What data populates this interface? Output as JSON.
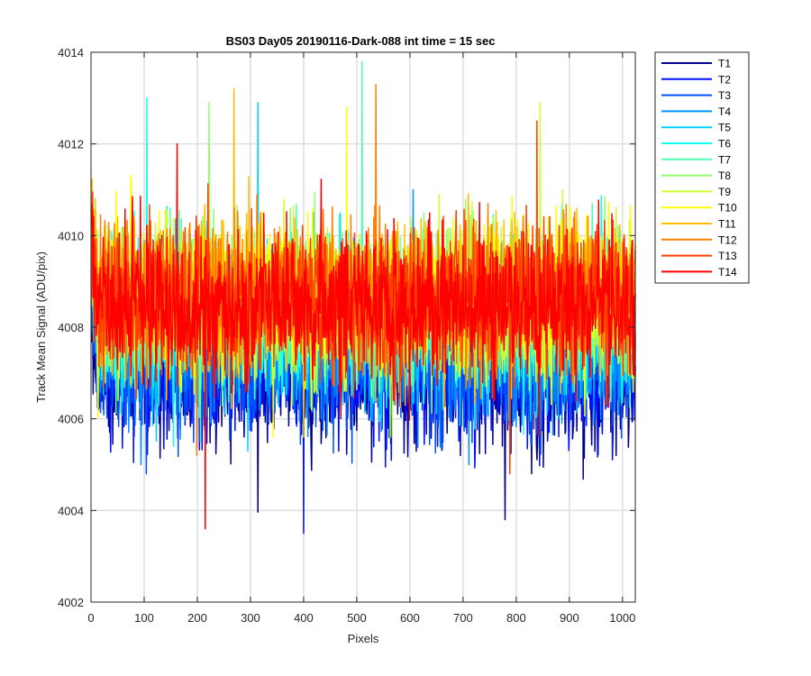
{
  "chart_data": {
    "type": "line",
    "title": "BS03 Day05 20190116-Dark-088 int time = 15 sec",
    "xlabel": "Pixels",
    "ylabel": "Track Mean Signal (ADU/pix)",
    "xlim": [
      0,
      1024
    ],
    "ylim": [
      4002,
      4014
    ],
    "xticks": [
      "0",
      "100",
      "200",
      "300",
      "400",
      "500",
      "600",
      "700",
      "800",
      "900",
      "1000"
    ],
    "yticks": [
      "4002",
      "4004",
      "4006",
      "4008",
      "4010",
      "4012",
      "4014"
    ],
    "grid": true,
    "legend_position": "outside-right",
    "x": {
      "start": 1,
      "end": 1024,
      "step": 1
    },
    "series": [
      {
        "name": "T1",
        "color": "#00008f",
        "mean": 4006.9,
        "spread": 0.75,
        "min": 4003.8,
        "max": 4010.0
      },
      {
        "name": "T2",
        "color": "#0010ff",
        "mean": 4007.1,
        "spread": 0.75,
        "min": 4003.5,
        "max": 4010.2
      },
      {
        "name": "T3",
        "color": "#0050ff",
        "mean": 4007.3,
        "spread": 0.75,
        "min": 4004.8,
        "max": 4010.5
      },
      {
        "name": "T4",
        "color": "#0090ff",
        "mean": 4007.6,
        "spread": 0.75,
        "min": 4005.0,
        "max": 4011.0
      },
      {
        "name": "T5",
        "color": "#00d0ff",
        "mean": 4008.0,
        "spread": 0.8,
        "min": 4005.3,
        "max": 4012.9
      },
      {
        "name": "T6",
        "color": "#10ffef",
        "mean": 4008.2,
        "spread": 0.8,
        "min": 4005.4,
        "max": 4013.0
      },
      {
        "name": "T7",
        "color": "#50ffaf",
        "mean": 4008.4,
        "spread": 0.8,
        "min": 4005.5,
        "max": 4013.8
      },
      {
        "name": "T8",
        "color": "#90ff6f",
        "mean": 4008.5,
        "spread": 0.8,
        "min": 4005.6,
        "max": 4012.9
      },
      {
        "name": "T9",
        "color": "#cfff30",
        "mean": 4008.6,
        "spread": 0.8,
        "min": 4005.6,
        "max": 4012.9
      },
      {
        "name": "T10",
        "color": "#ffff00",
        "mean": 4008.7,
        "spread": 0.8,
        "min": 4005.6,
        "max": 4012.8
      },
      {
        "name": "T11",
        "color": "#ffbf00",
        "mean": 4008.7,
        "spread": 0.8,
        "min": 4005.6,
        "max": 4013.2
      },
      {
        "name": "T12",
        "color": "#ff8000",
        "mean": 4008.7,
        "spread": 0.8,
        "min": 4005.2,
        "max": 4013.3
      },
      {
        "name": "T13",
        "color": "#ff4000",
        "mean": 4008.6,
        "spread": 0.8,
        "min": 4004.8,
        "max": 4012.5
      },
      {
        "name": "T14",
        "color": "#ff0000",
        "mean": 4008.5,
        "spread": 0.8,
        "min": 4003.6,
        "max": 4012.0
      }
    ]
  }
}
